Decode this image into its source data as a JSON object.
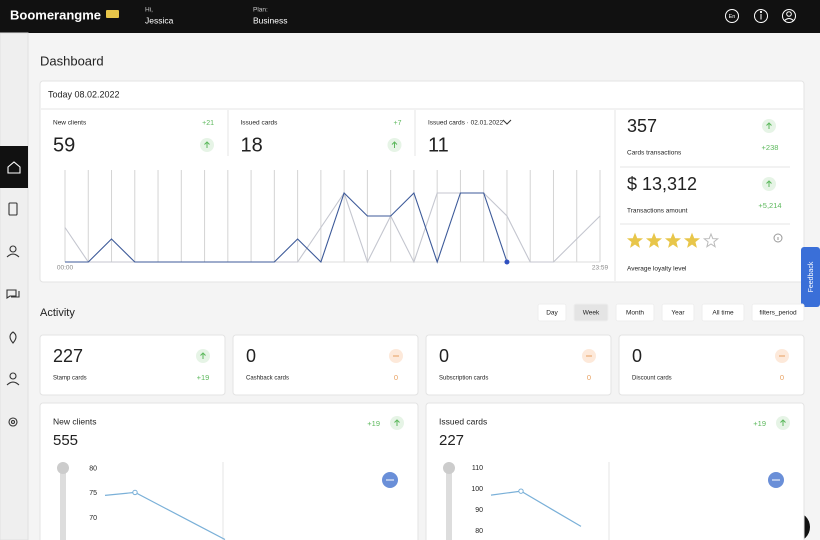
{
  "header": {
    "logo": "Boomerangme",
    "greeting": "Hi,",
    "user": "Jessica",
    "plan_label": "Plan:",
    "plan": "Business",
    "lang": "En"
  },
  "page_title": "Dashboard",
  "today": {
    "title": "Today 08.02.2022",
    "stats": [
      {
        "label": "New clients",
        "value": 59,
        "delta": "+21"
      },
      {
        "label": "Issued cards",
        "value": 18,
        "delta": "+7"
      },
      {
        "label": "Issued cards · 02.01.2022",
        "value": 11
      }
    ],
    "side": [
      {
        "value": 357,
        "label": "Cards transactions",
        "delta": "+238"
      },
      {
        "value": "$ 13,312",
        "label": "Transactions amount",
        "delta": "+5,214"
      }
    ],
    "loyalty": {
      "label": "Average loyalty level",
      "rating": 4,
      "max": 5
    }
  },
  "activity": {
    "title": "Activity",
    "periods": [
      "Day",
      "Week",
      "Month",
      "Year",
      "All time",
      "filters_period"
    ],
    "active_period": "Week",
    "cards": [
      {
        "value": 227,
        "label": "Stamp cards",
        "delta": "+19",
        "color": "#5cb85c"
      },
      {
        "value": 0,
        "label": "Cashback cards",
        "delta": 0,
        "color": "#e8a060"
      },
      {
        "value": 0,
        "label": "Subscription cards",
        "delta": 0,
        "color": "#e8a060"
      },
      {
        "value": 0,
        "label": "Discount cards",
        "delta": 0,
        "color": "#e8a060"
      }
    ]
  },
  "feedback": "Feedback",
  "chart_data": [
    {
      "type": "line",
      "categories": [
        "00:00",
        null,
        null,
        null,
        null,
        null,
        null,
        null,
        null,
        null,
        null,
        null,
        null,
        null,
        null,
        null,
        null,
        null,
        null,
        null,
        null,
        null,
        null,
        "23:59"
      ],
      "series": [
        {
          "color": "#3d5a99",
          "values": [
            0,
            0,
            1,
            0,
            0,
            0,
            0,
            0,
            0,
            0,
            1,
            0,
            3,
            2,
            2,
            3,
            0,
            3,
            3,
            0,
            null,
            null,
            null,
            null
          ]
        },
        {
          "color": "#c4c6cf",
          "values": [
            1.5,
            0,
            0,
            0,
            0,
            0,
            0,
            0,
            0,
            0,
            0,
            1.5,
            3,
            0,
            2,
            0,
            3,
            3,
            3,
            2,
            0,
            0,
            1,
            2
          ]
        }
      ],
      "ylim": [
        0,
        4
      ]
    },
    {
      "type": "line",
      "title": "New clients",
      "total": 555,
      "delta": "+19",
      "color": "#7ab0d8",
      "values": [
        74.6,
        75.2,
        72.0,
        68.8,
        65.6
      ],
      "ylim": [
        65.5,
        81.4
      ],
      "yticks": [
        80,
        75,
        70
      ]
    },
    {
      "type": "line",
      "title": "Issued cards",
      "total": 227,
      "delta": "+19",
      "color": "#7ab0d8",
      "values": [
        97.1,
        99.0,
        90.6,
        82.2
      ],
      "ylim": [
        75.7,
        112.9
      ],
      "yticks": [
        110,
        100,
        90,
        80
      ]
    }
  ]
}
